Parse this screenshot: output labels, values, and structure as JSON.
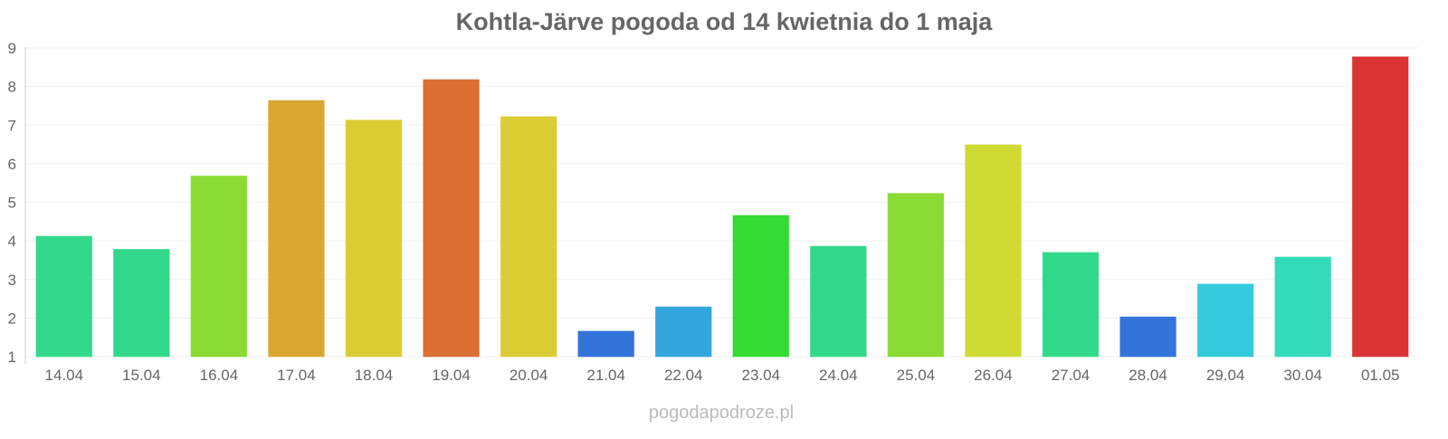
{
  "chart_data": {
    "type": "bar",
    "title": "Kohtla-Järve pogoda od 14 kwietnia do 1 maja",
    "xlabel": "",
    "ylabel": "",
    "ylim": [
      1,
      9
    ],
    "yticks": [
      "1",
      "2",
      "3",
      "4",
      "5",
      "6",
      "7",
      "8",
      "9"
    ],
    "grid": true,
    "categories": [
      "14.04",
      "15.04",
      "16.04",
      "17.04",
      "18.04",
      "19.04",
      "20.04",
      "21.04",
      "22.04",
      "23.04",
      "24.04",
      "25.04",
      "26.04",
      "27.04",
      "28.04",
      "29.04",
      "30.04",
      "01.05"
    ],
    "values": [
      4.12,
      3.78,
      5.68,
      7.64,
      7.13,
      8.18,
      7.22,
      1.66,
      2.29,
      4.66,
      3.86,
      5.23,
      6.49,
      3.7,
      2.03,
      2.88,
      3.58,
      8.77
    ],
    "colors": [
      "#33d98a",
      "#33d98a",
      "#8adb33",
      "#dba733",
      "#dbcc33",
      "#db6e33",
      "#dbcc33",
      "#3374db",
      "#33a6db",
      "#33db33",
      "#33d98a",
      "#8adb33",
      "#cfdb33",
      "#33d98a",
      "#3374db",
      "#33cbdb",
      "#33dbbb",
      "#db3333"
    ]
  },
  "watermark": "pogodapodroze.pl"
}
